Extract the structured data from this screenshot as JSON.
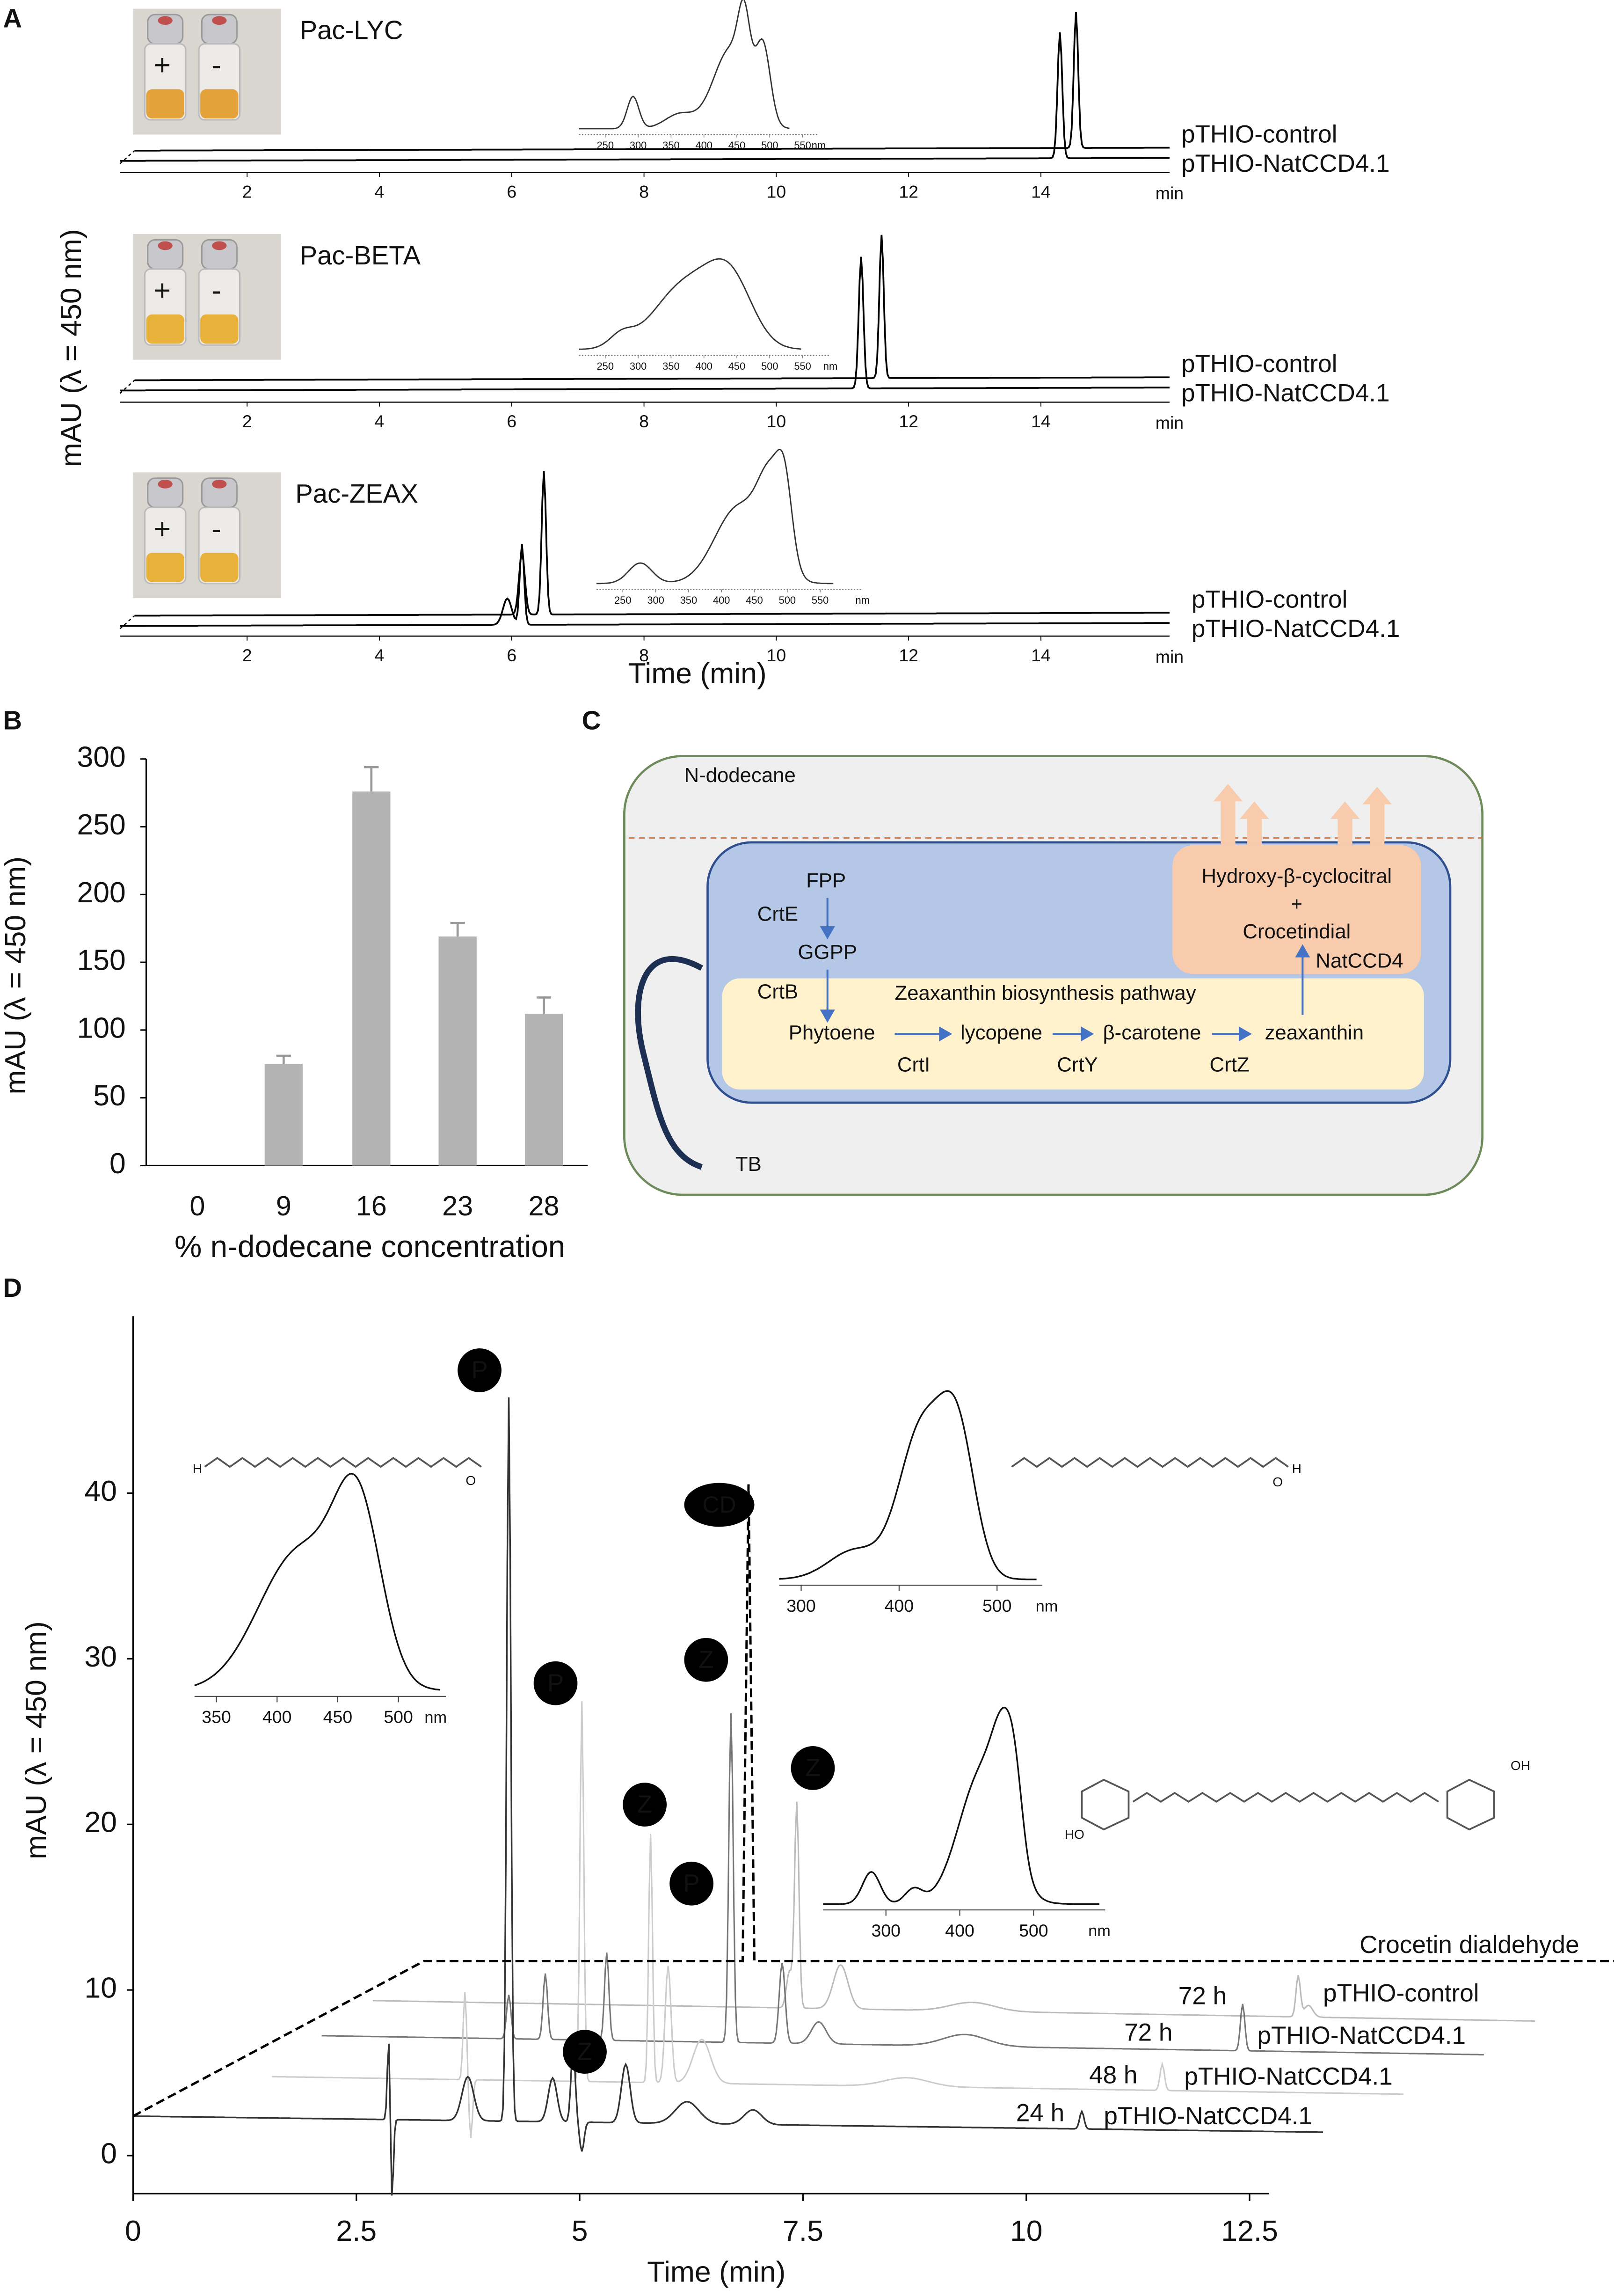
{
  "chart_data": {
    "type": "bar",
    "panel": "B",
    "y_label": "mAU (λ = 450 nm)",
    "x_label": "% n-dodecane concentration",
    "categories": [
      "0",
      "9",
      "16",
      "23",
      "28"
    ],
    "values": [
      0,
      75,
      276,
      169,
      112
    ],
    "errors": [
      0,
      6,
      18,
      10,
      12
    ],
    "color": "#b3b3b3",
    "ylim": [
      0,
      300
    ],
    "yticks": [
      0,
      50,
      100,
      150,
      200,
      250,
      300
    ],
    "grid": false
  },
  "panel_a": {
    "label": "A",
    "y_label": "mAU (λ = 450 nm)",
    "x_label": "Time (min)",
    "time_unit": "min",
    "xticks": [
      2,
      4,
      6,
      8,
      10,
      12,
      14
    ],
    "inset_ticks": [
      250,
      300,
      350,
      400,
      450,
      500,
      550
    ],
    "inset_unit": "nm",
    "vial_marks": [
      "+",
      "-"
    ],
    "traces": [
      "pTHIO-control",
      "pTHIO-NatCCD4.1"
    ],
    "strains": [
      "Pac-LYC",
      "Pac-BETA",
      "Pac-ZEAX"
    ]
  },
  "panel_c": {
    "label": "C",
    "medium": "N-dodecane",
    "fpp": "FPP",
    "crte": "CrtE",
    "ggpp": "GGPP",
    "crtb": "CrtB",
    "pathway": "Zeaxanthin biosynthesis pathway",
    "phytoene": "Phytoene",
    "lycopene": "lycopene",
    "beta": "β-carotene",
    "zeaxanthin": "zeaxanthin",
    "crti": "CrtI",
    "crty": "CrtY",
    "crtz": "CrtZ",
    "product1": "Hydroxy-β-cyclocitral",
    "plus": "+",
    "product2": "Crocetindial",
    "enzyme": "NatCCD4",
    "tb": "TB"
  },
  "panel_d": {
    "label": "D",
    "y_label": "mAU (λ = 450 nm)",
    "x_label": "Time (min)",
    "xticks": [
      0,
      {
        "value": 2.5,
        "label": "2.5"
      },
      5,
      {
        "value": 7.5,
        "label": "7.5"
      },
      10,
      {
        "value": 12.5,
        "label": "12.5"
      }
    ],
    "yticks": [
      0,
      10,
      20,
      30,
      40
    ],
    "peak_labels": [
      "P",
      "P",
      "P",
      "Z",
      "Z",
      "Z",
      "Z",
      "CD"
    ],
    "standard": "Crocetin dialdehyde",
    "traces": [
      {
        "time": "72 h",
        "name": "pTHIO-control"
      },
      {
        "time": "72 h",
        "name": "pTHIO-NatCCD4.1"
      },
      {
        "time": "48 h",
        "name": "pTHIO-NatCCD4.1"
      },
      {
        "time": "24 h",
        "name": "pTHIO-NatCCD4.1"
      }
    ],
    "inset1_ticks": [
      350,
      400,
      450,
      500
    ],
    "inset2_ticks": [
      300,
      400,
      500
    ],
    "inset3_ticks": [
      300,
      400,
      500
    ],
    "inset_unit": "nm",
    "atoms": [
      "H",
      "O",
      "HO",
      "OH"
    ]
  }
}
